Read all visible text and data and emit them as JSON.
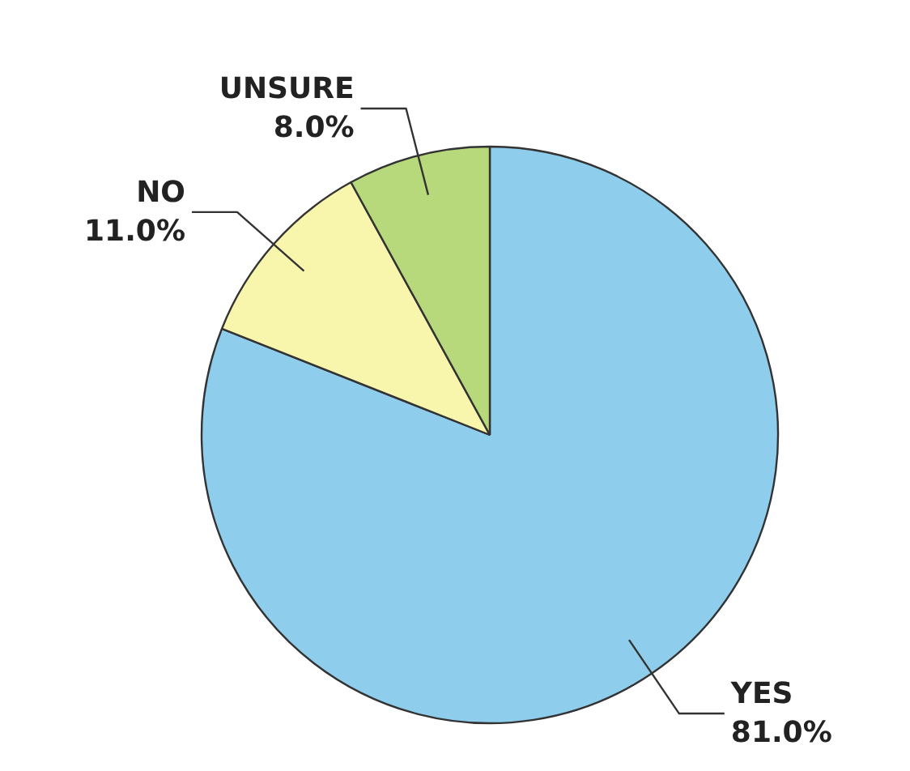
{
  "chart_data": {
    "type": "pie",
    "categories": [
      "YES",
      "NO",
      "UNSURE"
    ],
    "values": [
      81.0,
      11.0,
      8.0
    ],
    "value_labels": [
      "81.0%",
      "11.0%",
      "8.0%"
    ],
    "colors": [
      "#8fcdec",
      "#f8f5ad",
      "#b8d87c"
    ]
  }
}
